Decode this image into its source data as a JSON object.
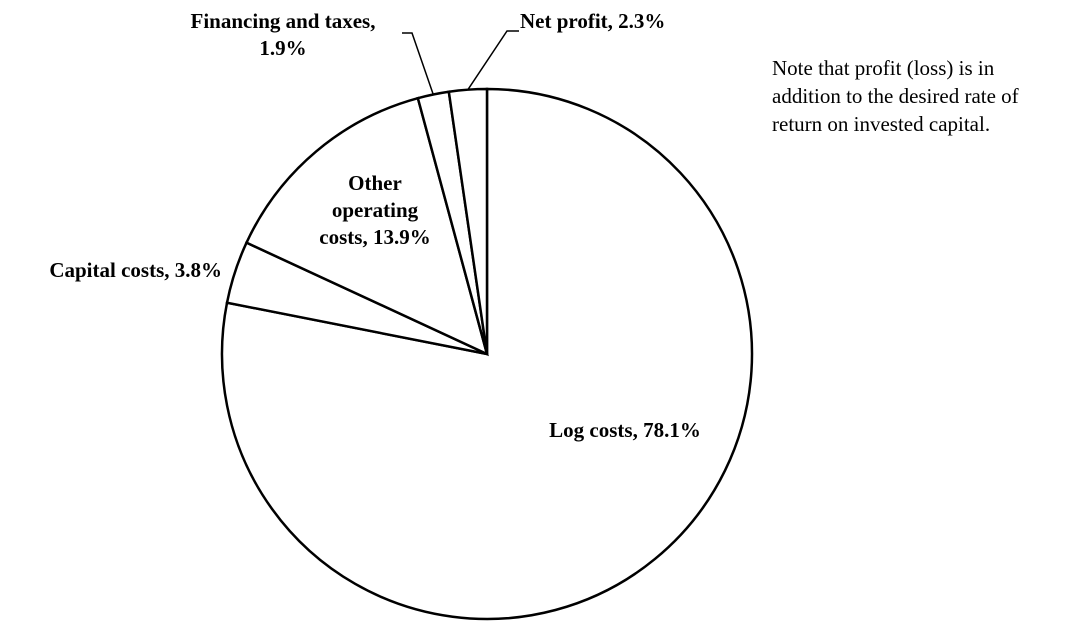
{
  "chart_data": {
    "type": "pie",
    "categories": [
      "Log costs,",
      "Capital costs,",
      "Other operating costs,",
      "Financing and taxes,",
      "Net profit,"
    ],
    "values": [
      78.1,
      3.8,
      13.9,
      1.9,
      2.3
    ],
    "value_labels": [
      "78.1%",
      "3.8%",
      "13.9%",
      "1.9%",
      "2.3%"
    ],
    "color": "#ffffff",
    "note": [
      "Note that profit (loss) is in",
      "addition to the desired rate of",
      "return on invested capital."
    ]
  }
}
